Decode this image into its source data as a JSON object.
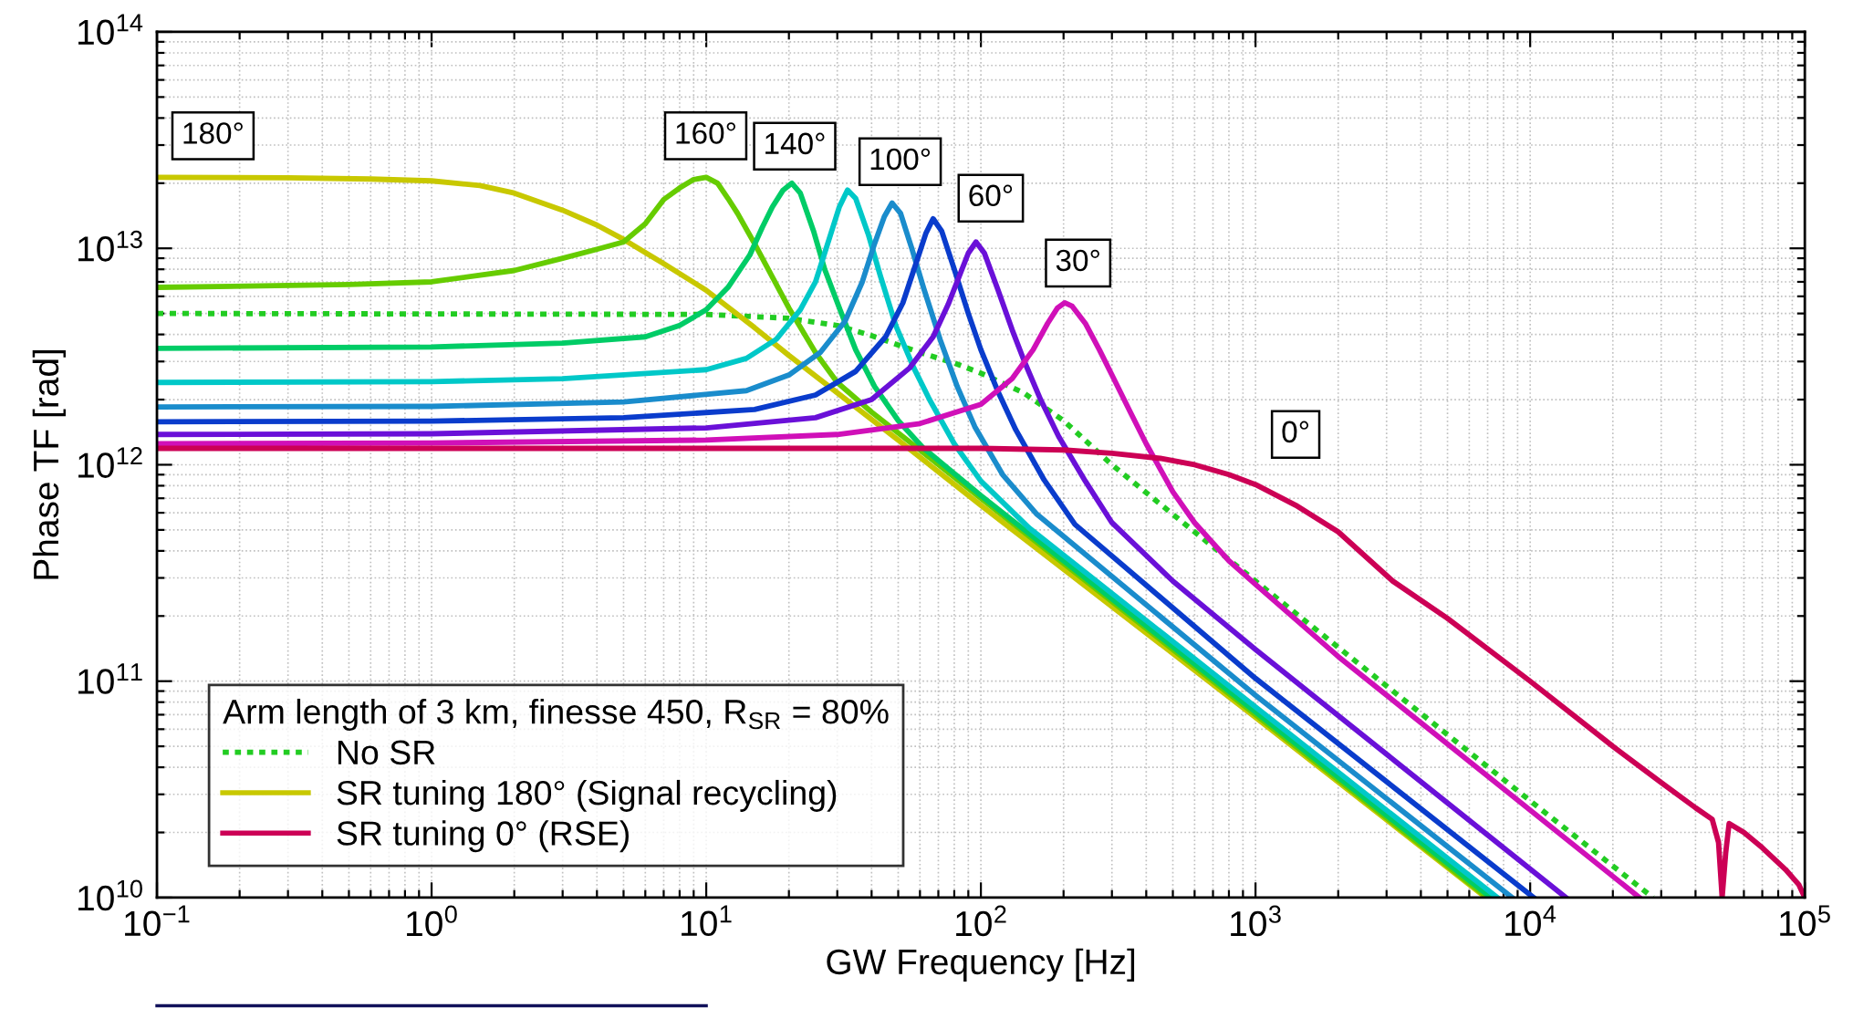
{
  "chart_data": {
    "type": "line",
    "xlabel": "GW Frequency [Hz]",
    "ylabel": "Phase TF [rad]",
    "legend_title": "Arm length of 3 km, finesse 450, R$_{SR}$ = 80%",
    "log": "xy",
    "grid": true,
    "legend": "bottom left",
    "xlim": [
      0.1,
      100000
    ],
    "ylim": [
      10000000000,
      100000000000000
    ],
    "xticks": [
      {
        "value": 0.1,
        "label": "10$^{−1}$"
      },
      {
        "value": 1,
        "label": "10$^{0}$"
      },
      {
        "value": 10,
        "label": "10$^{1}$"
      },
      {
        "value": 100,
        "label": "10$^{2}$"
      },
      {
        "value": 1000,
        "label": "10$^{3}$"
      },
      {
        "value": 10000,
        "label": "10$^{4}$"
      },
      {
        "value": 100000,
        "label": "10$^{5}$"
      }
    ],
    "yticks": [
      {
        "value": 10000000000,
        "label": "10$^{10}$"
      },
      {
        "value": 100000000000,
        "label": "10$^{11}$"
      },
      {
        "value": 1000000000000,
        "label": "10$^{12}$"
      },
      {
        "value": 10000000000000,
        "label": "10$^{13}$"
      },
      {
        "value": 100000000000000,
        "label": "10$^{14}$"
      }
    ],
    "series": [
      {
        "name": "No SR",
        "color": "#22cc22",
        "line_style": "dotted",
        "x": [
          0.1,
          10,
          20,
          30,
          40,
          60,
          80,
          100,
          143,
          200,
          300,
          500,
          1000,
          3000,
          10000,
          28000
        ],
        "values": [
          5000000000000.0,
          4950000000000.0,
          4750000000000.0,
          4400000000000.0,
          3950000000000.0,
          3300000000000.0,
          2950000000000.0,
          2650000000000.0,
          2150000000000.0,
          1600000000000.0,
          1000000000000.0,
          590000000000.0,
          290000000000.0,
          95000000000.0,
          28000000000.0,
          10000000000.0
        ]
      },
      {
        "name": "SR tuning 180° (Signal recycling)",
        "color": "#c8c800",
        "x": [
          0.1,
          0.3,
          0.6,
          1,
          1.5,
          2,
          3,
          4,
          5,
          7,
          10,
          15,
          20,
          30,
          50,
          100,
          1000,
          6900
        ],
        "values": [
          21300000000000.0,
          21200000000000.0,
          20900000000000.0,
          20500000000000.0,
          19500000000000.0,
          18000000000000.0,
          15000000000000.0,
          12800000000000.0,
          11000000000000.0,
          8500000000000.0,
          6400000000000.0,
          4300000000000.0,
          3200000000000.0,
          2150000000000.0,
          1300000000000.0,
          650000000000.0,
          68000000000.0,
          10000000000.0
        ]
      },
      {
        "color": "#66cc00",
        "x": [
          0.1,
          0.5,
          1,
          2,
          3,
          4,
          5,
          6,
          7,
          8,
          9,
          10,
          11,
          12,
          13,
          15,
          17,
          20,
          25,
          30,
          40,
          60,
          100,
          1000,
          7000
        ],
        "values": [
          6600000000000.0,
          6800000000000.0,
          7000000000000.0,
          7900000000000.0,
          9000000000000.0,
          9900000000000.0,
          10700000000000.0,
          13000000000000.0,
          16800000000000.0,
          19000000000000.0,
          20800000000000.0,
          21300000000000.0,
          20000000000000.0,
          17000000000000.0,
          14500000000000.0,
          10500000000000.0,
          7800000000000.0,
          5300000000000.0,
          3300000000000.0,
          2400000000000.0,
          1750000000000.0,
          1170000000000.0,
          700000000000.0,
          70000000000.0,
          10000000000.0
        ]
      },
      {
        "color": "#00cc66",
        "x": [
          0.1,
          1,
          3,
          6,
          8,
          10,
          12,
          14.4,
          16,
          17.4,
          19,
          20.5,
          22,
          24.6,
          27,
          30.7,
          35,
          41,
          50,
          61.5,
          100,
          1000,
          7200
        ],
        "values": [
          3450000000000.0,
          3500000000000.0,
          3650000000000.0,
          3900000000000.0,
          4400000000000.0,
          5200000000000.0,
          6600000000000.0,
          9300000000000.0,
          12500000000000.0,
          15500000000000.0,
          18500000000000.0,
          20000000000000.0,
          18000000000000.0,
          12000000000000.0,
          8000000000000.0,
          5200000000000.0,
          3400000000000.0,
          2300000000000.0,
          1600000000000.0,
          1200000000000.0,
          720000000000.0,
          72000000000.0,
          10000000000.0
        ]
      },
      {
        "color": "#00c8c8",
        "x": [
          0.1,
          1,
          3,
          10,
          14,
          18,
          22,
          25,
          28,
          30.5,
          32.7,
          35,
          39,
          43,
          49,
          57,
          65,
          80,
          100,
          150,
          1000,
          7600
        ],
        "values": [
          2400000000000.0,
          2420000000000.0,
          2500000000000.0,
          2750000000000.0,
          3100000000000.0,
          3800000000000.0,
          5200000000000.0,
          7000000000000.0,
          11000000000000.0,
          15500000000000.0,
          18600000000000.0,
          17000000000000.0,
          11500000000000.0,
          7500000000000.0,
          4400000000000.0,
          2800000000000.0,
          2000000000000.0,
          1250000000000.0,
          840000000000.0,
          510000000000.0,
          76000000000.0,
          10000000000.0
        ]
      },
      {
        "color": "#1a8ccc",
        "x": [
          0.1,
          1,
          5,
          14,
          20,
          26,
          32,
          37,
          41,
          44.5,
          47.5,
          51,
          56,
          62,
          71,
          82,
          95,
          120,
          160,
          1000,
          8600
        ],
        "values": [
          1850000000000.0,
          1860000000000.0,
          1950000000000.0,
          2200000000000.0,
          2600000000000.0,
          3300000000000.0,
          4600000000000.0,
          7000000000000.0,
          10500000000000.0,
          14000000000000.0,
          16200000000000.0,
          14500000000000.0,
          10000000000000.0,
          6500000000000.0,
          3800000000000.0,
          2300000000000.0,
          1500000000000.0,
          900000000000.0,
          590000000000.0,
          86000000000.0,
          10000000000.0
        ]
      },
      {
        "color": "#0a3ccc",
        "x": [
          0.1,
          1,
          5,
          15,
          25,
          35,
          45,
          52,
          58,
          63,
          67,
          72,
          80,
          90,
          100,
          115,
          134,
          170,
          220,
          1000,
          10300
        ],
        "values": [
          1580000000000.0,
          1590000000000.0,
          1650000000000.0,
          1800000000000.0,
          2100000000000.0,
          2700000000000.0,
          3900000000000.0,
          5600000000000.0,
          8500000000000.0,
          11700000000000.0,
          13700000000000.0,
          12000000000000.0,
          8000000000000.0,
          5000000000000.0,
          3400000000000.0,
          2200000000000.0,
          1450000000000.0,
          850000000000.0,
          530000000000.0,
          103000000000.0,
          10000000000.0
        ]
      },
      {
        "color": "#6a10d8",
        "x": [
          0.1,
          1,
          10,
          25,
          40,
          55,
          67,
          76,
          84,
          90,
          96,
          103,
          115,
          130,
          144,
          165,
          192,
          240,
          300,
          500,
          1000,
          13500
        ],
        "values": [
          1380000000000.0,
          1390000000000.0,
          1480000000000.0,
          1650000000000.0,
          2000000000000.0,
          2800000000000.0,
          3900000000000.0,
          5500000000000.0,
          7600000000000.0,
          9500000000000.0,
          10700000000000.0,
          9500000000000.0,
          6500000000000.0,
          4200000000000.0,
          3000000000000.0,
          2000000000000.0,
          1350000000000.0,
          840000000000.0,
          540000000000.0,
          290000000000.0,
          140000000000.0,
          10000000000.0
        ]
      },
      {
        "color": "#d010b8",
        "x": [
          0.1,
          1,
          10,
          30,
          60,
          100,
          130,
          155,
          175,
          190,
          202,
          215,
          240,
          270,
          300,
          350,
          400,
          500,
          600,
          800,
          1000,
          2000,
          25000
        ],
        "values": [
          1250000000000.0,
          1260000000000.0,
          1300000000000.0,
          1380000000000.0,
          1550000000000.0,
          1900000000000.0,
          2500000000000.0,
          3400000000000.0,
          4500000000000.0,
          5300000000000.0,
          5600000000000.0,
          5400000000000.0,
          4500000000000.0,
          3400000000000.0,
          2600000000000.0,
          1750000000000.0,
          1250000000000.0,
          750000000000.0,
          540000000000.0,
          360000000000.0,
          280000000000.0,
          130000000000.0,
          10000000000.0
        ]
      },
      {
        "name": "SR tuning 0° (RSE)",
        "color": "#cc0055",
        "x": [
          0.1,
          100,
          200,
          300,
          450,
          600,
          800,
          1000,
          1400,
          2000,
          3160,
          5000,
          10000,
          20000,
          30000,
          40000,
          46000,
          48500,
          50000,
          51500,
          53000,
          60000,
          70000,
          85000,
          95000,
          100000
        ],
        "values": [
          1190000000000.0,
          1190000000000.0,
          1170000000000.0,
          1130000000000.0,
          1070000000000.0,
          1000000000000.0,
          900000000000.0,
          810000000000.0,
          650000000000.0,
          490000000000.0,
          290000000000.0,
          195000000000.0,
          100000000000.0,
          50000000000.0,
          34000000000.0,
          26000000000.0,
          23000000000.0,
          18000000000.0,
          10000000000.0,
          16000000000.0,
          22000000000.0,
          20000000000.0,
          17000000000.0,
          13500000000.0,
          11500000000.0,
          10000000000.0
        ]
      }
    ],
    "annotations": [
      "180°",
      "160°",
      "140°",
      "100°",
      "60°",
      "30°",
      "0°"
    ]
  }
}
